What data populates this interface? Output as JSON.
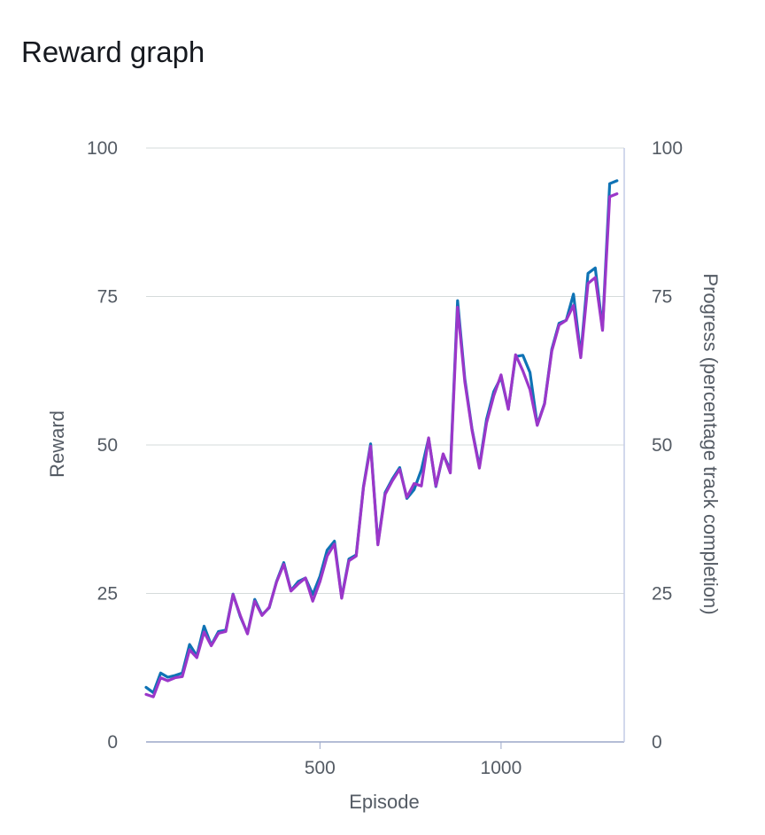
{
  "page": {
    "title": "Reward graph"
  },
  "chart_data": {
    "type": "line",
    "title": "Reward graph",
    "xlabel": "Episode",
    "ylabel": "Reward",
    "y2label": "Progress (percentage track completion)",
    "xlim": [
      20,
      1340
    ],
    "ylim": [
      0,
      100
    ],
    "y2lim": [
      0,
      100
    ],
    "xticks": [
      500,
      1000
    ],
    "yticks": [
      0,
      25,
      50,
      75,
      100
    ],
    "y2ticks": [
      0,
      25,
      50,
      75,
      100
    ],
    "grid": true,
    "series": [
      {
        "color": "#0f73b5",
        "axis": "y",
        "x": [
          20,
          40,
          60,
          80,
          100,
          120,
          140,
          160,
          180,
          200,
          220,
          240,
          260,
          280,
          300,
          320,
          340,
          360,
          380,
          400,
          420,
          440,
          460,
          480,
          500,
          520,
          540,
          560,
          580,
          600,
          620,
          640,
          660,
          680,
          700,
          720,
          740,
          760,
          780,
          800,
          820,
          840,
          860,
          880,
          900,
          920,
          940,
          960,
          980,
          1000,
          1020,
          1040,
          1060,
          1080,
          1100,
          1120,
          1140,
          1160,
          1180,
          1200,
          1220,
          1240,
          1260,
          1280,
          1300,
          1320
        ],
        "values": [
          9.2,
          8.3,
          11.6,
          10.9,
          11.2,
          11.6,
          16.4,
          14.5,
          19.5,
          16.3,
          18.6,
          18.8,
          24.9,
          21.1,
          18.3,
          24.0,
          21.4,
          22.6,
          27.0,
          30.2,
          25.5,
          27.0,
          27.6,
          24.8,
          27.9,
          32.3,
          33.8,
          24.3,
          30.8,
          31.5,
          43.0,
          50.2,
          33.4,
          42.0,
          44.3,
          46.2,
          41.0,
          42.5,
          45.8,
          51.1,
          43.0,
          48.4,
          45.8,
          74.3,
          61.1,
          52.6,
          46.4,
          54.3,
          59.0,
          61.4,
          56.1,
          64.9,
          65.1,
          62.2,
          53.4,
          57.0,
          66.1,
          70.5,
          71.0,
          75.4,
          65.1,
          78.9,
          79.8,
          69.6,
          94.0,
          94.5
        ]
      },
      {
        "color": "#9b37c9",
        "axis": "y2",
        "x": [
          20,
          40,
          60,
          80,
          100,
          120,
          140,
          160,
          180,
          200,
          220,
          240,
          260,
          280,
          300,
          320,
          340,
          360,
          380,
          400,
          420,
          440,
          460,
          480,
          500,
          520,
          540,
          560,
          580,
          600,
          620,
          640,
          660,
          680,
          700,
          720,
          740,
          760,
          780,
          800,
          820,
          840,
          860,
          880,
          900,
          920,
          940,
          960,
          980,
          1000,
          1020,
          1040,
          1060,
          1080,
          1100,
          1120,
          1140,
          1160,
          1180,
          1200,
          1220,
          1240,
          1260,
          1280,
          1300,
          1320
        ],
        "values": [
          8.0,
          7.6,
          10.8,
          10.3,
          10.8,
          11.0,
          15.5,
          14.2,
          18.5,
          16.2,
          18.3,
          18.6,
          24.8,
          21.3,
          18.2,
          23.7,
          21.3,
          22.7,
          26.9,
          29.9,
          25.4,
          26.6,
          27.6,
          23.7,
          27.0,
          31.3,
          33.3,
          24.2,
          30.5,
          31.3,
          42.8,
          49.8,
          33.2,
          41.7,
          44.0,
          45.9,
          41.2,
          43.5,
          43.1,
          51.2,
          43.1,
          48.5,
          45.3,
          73.2,
          60.6,
          52.4,
          46.1,
          53.7,
          58.3,
          61.8,
          56.0,
          65.2,
          62.5,
          59.3,
          53.3,
          56.9,
          65.8,
          70.2,
          71.0,
          73.5,
          64.7,
          77.2,
          78.2,
          69.3,
          91.8,
          92.3
        ]
      }
    ]
  }
}
